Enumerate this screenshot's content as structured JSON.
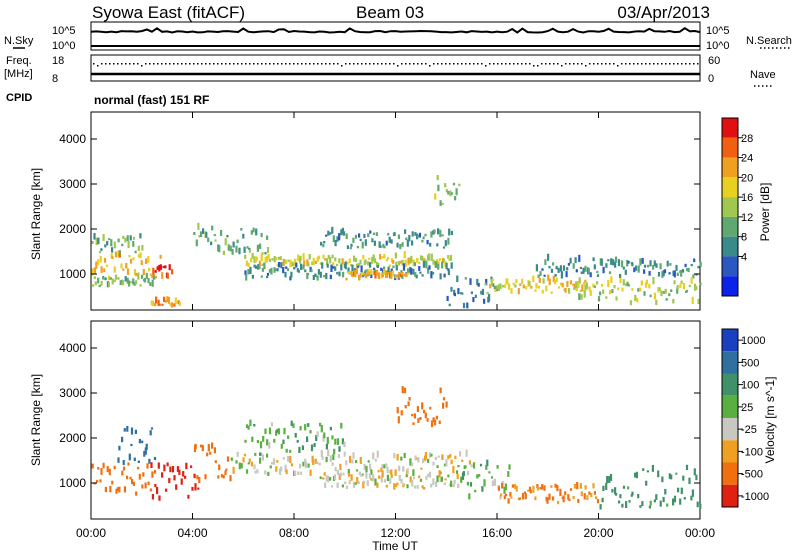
{
  "header": {
    "title": "Syowa East (fitACF)",
    "beam": "Beam 03",
    "date": "03/Apr/2013",
    "mode": "normal (fast) 151 RF"
  },
  "left_labels": {
    "nsky": "N.Sky",
    "freq": "Freq.",
    "freq_unit": "[MHz]",
    "cpid": "CPID"
  },
  "right_labels": {
    "nsearch": "N.Search",
    "nave": "Nave"
  },
  "noise_ticks": {
    "top": "10^5",
    "bottom": "10^0"
  },
  "freq_ticks": {
    "top": "18",
    "bottom": "8"
  },
  "nave_ticks": {
    "top": "60",
    "bottom": "0"
  },
  "xaxis": {
    "label": "Time UT",
    "ticks": [
      "00:00",
      "04:00",
      "08:00",
      "12:00",
      "16:00",
      "20:00",
      "00:00"
    ]
  },
  "yaxis": {
    "label": "Slant Range [km]",
    "ticks": [
      "1000",
      "2000",
      "3000",
      "4000"
    ]
  },
  "power_colorbar": {
    "label": "Power [dB]",
    "ticks": [
      "4",
      "8",
      "12",
      "16",
      "20",
      "24",
      "28"
    ],
    "colors": [
      "#0b22e8",
      "#2a58c0",
      "#3a8a8a",
      "#60a870",
      "#a0c850",
      "#e8d020",
      "#f0a020",
      "#f06010",
      "#e01010"
    ]
  },
  "velocity_colorbar": {
    "label": "Velocity [m s^-1]",
    "ticks": [
      "1000",
      "500",
      "100",
      "25",
      "-25",
      "-100",
      "-500",
      "-1000"
    ],
    "colors": [
      "#1a40c0",
      "#3070a0",
      "#40906a",
      "#58b040",
      "#c8c8c0",
      "#f0a020",
      "#f07010",
      "#e02010"
    ]
  },
  "chart_data": [
    {
      "type": "heatmap",
      "name": "Power",
      "xlabel": "Time UT",
      "ylabel": "Slant Range [km]",
      "xlim": [
        0,
        24
      ],
      "ylim": [
        200,
        4600
      ],
      "colorbar_range_db": [
        0,
        32
      ],
      "bands": [
        {
          "t": [
            0.0,
            2.8
          ],
          "r": [
            850,
            1400
          ],
          "value": 22
        },
        {
          "t": [
            2.4,
            3.2
          ],
          "r": [
            850,
            1150
          ],
          "value": 30
        },
        {
          "t": [
            0.0,
            2.5
          ],
          "r": [
            700,
            900
          ],
          "value": 14
        },
        {
          "t": [
            0.0,
            2.0
          ],
          "r": [
            1400,
            1800
          ],
          "value": 12
        },
        {
          "t": [
            4.0,
            7.0
          ],
          "r": [
            1400,
            2000
          ],
          "value": 12
        },
        {
          "t": [
            6.0,
            14.2
          ],
          "r": [
            1150,
            1350
          ],
          "value": 18
        },
        {
          "t": [
            6.0,
            14.2
          ],
          "r": [
            850,
            1150
          ],
          "value": 9
        },
        {
          "t": [
            10.0,
            12.5
          ],
          "r": [
            850,
            1000
          ],
          "value": 22
        },
        {
          "t": [
            9.0,
            14.2
          ],
          "r": [
            1550,
            1900
          ],
          "value": 10
        },
        {
          "t": [
            14.0,
            16.0
          ],
          "r": [
            200,
            900
          ],
          "value": 7
        },
        {
          "t": [
            15.5,
            19.5
          ],
          "r": [
            550,
            850
          ],
          "value": 20
        },
        {
          "t": [
            17.5,
            24.0
          ],
          "r": [
            900,
            1300
          ],
          "value": 10
        },
        {
          "t": [
            19.0,
            24.0
          ],
          "r": [
            300,
            800
          ],
          "value": 16
        },
        {
          "t": [
            2.3,
            3.5
          ],
          "r": [
            250,
            400
          ],
          "value": 24
        },
        {
          "t": [
            13.5,
            14.5
          ],
          "r": [
            2500,
            3100
          ],
          "value": 14
        }
      ]
    },
    {
      "type": "heatmap",
      "name": "Velocity",
      "xlabel": "Time UT",
      "ylabel": "Slant Range [km]",
      "xlim": [
        0,
        24
      ],
      "ylim": [
        200,
        4600
      ],
      "bands": [
        {
          "t": [
            0.0,
            2.5
          ],
          "r": [
            700,
            1400
          ],
          "value": -300
        },
        {
          "t": [
            2.3,
            4.2
          ],
          "r": [
            600,
            1400
          ],
          "value": -700
        },
        {
          "t": [
            1.0,
            2.5
          ],
          "r": [
            1400,
            2200
          ],
          "value": 600
        },
        {
          "t": [
            4.0,
            5.5
          ],
          "r": [
            900,
            1800
          ],
          "value": -200
        },
        {
          "t": [
            5.5,
            15.0
          ],
          "r": [
            1150,
            1600
          ],
          "value": 0
        },
        {
          "t": [
            9.0,
            14.5
          ],
          "r": [
            850,
            1150
          ],
          "value": 0
        },
        {
          "t": [
            12.0,
            14.0
          ],
          "r": [
            2200,
            3100
          ],
          "value": -300
        },
        {
          "t": [
            14.5,
            16.5
          ],
          "r": [
            600,
            1400
          ],
          "value": 60
        },
        {
          "t": [
            16.0,
            20.0
          ],
          "r": [
            500,
            900
          ],
          "value": -100
        },
        {
          "t": [
            20.0,
            24.0
          ],
          "r": [
            400,
            1300
          ],
          "value": 150
        },
        {
          "t": [
            6.0,
            10.0
          ],
          "r": [
            1600,
            2300
          ],
          "value": 80
        }
      ]
    }
  ]
}
